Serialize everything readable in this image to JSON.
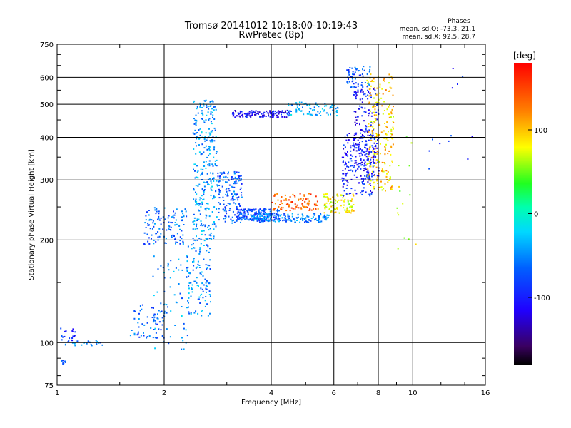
{
  "chart_data": {
    "type": "scatter",
    "title": "Tromsø 20141012 10:18:00-10:19:43",
    "subtitle": "RwPretec (8p)",
    "stats": {
      "heading": "Phases",
      "line1": "mean, sd,O: -73.3, 21.1",
      "line2": "mean, sd,X:  92.5, 28.7"
    },
    "xlabel": "Frequency [MHz]",
    "ylabel": "Stationary phase Virtual Height [km]",
    "xscale": "log",
    "yscale": "log",
    "xlim": [
      1,
      16
    ],
    "ylim": [
      75,
      750
    ],
    "xticks": [
      {
        "v": 1,
        "label": "1"
      },
      {
        "v": 2,
        "label": "2"
      },
      {
        "v": 4,
        "label": "4"
      },
      {
        "v": 6,
        "label": "6"
      },
      {
        "v": 8,
        "label": "8"
      },
      {
        "v": 10,
        "label": "10"
      },
      {
        "v": 16,
        "label": "16"
      }
    ],
    "yticks": [
      {
        "v": 75,
        "label": "75"
      },
      {
        "v": 100,
        "label": "100"
      },
      {
        "v": 200,
        "label": "200"
      },
      {
        "v": 300,
        "label": "300"
      },
      {
        "v": 400,
        "label": "400"
      },
      {
        "v": 500,
        "label": "500"
      },
      {
        "v": 600,
        "label": "600"
      },
      {
        "v": 750,
        "label": "750"
      }
    ],
    "grid": true,
    "colorbar": {
      "label": "[deg]",
      "range": [
        -180,
        180
      ],
      "ticks": [
        {
          "v": 100,
          "label": "100"
        },
        {
          "v": 0,
          "label": "0"
        },
        {
          "v": -100,
          "label": "-100"
        }
      ]
    },
    "clusters": [
      {
        "f": [
          1.0,
          1.12
        ],
        "h": [
          100,
          112
        ],
        "phase": -90,
        "n": 20
      },
      {
        "f": [
          1.05,
          1.35
        ],
        "h": [
          98,
          102
        ],
        "phase": -55,
        "n": 25
      },
      {
        "f": [
          1.02,
          1.06
        ],
        "h": [
          87,
          90
        ],
        "phase": -80,
        "n": 8
      },
      {
        "f": [
          1.6,
          2.0
        ],
        "h": [
          103,
          130
        ],
        "phase": -70,
        "n": 60
      },
      {
        "f": [
          1.85,
          2.35
        ],
        "h": [
          95,
          185
        ],
        "phase": -45,
        "n": 70
      },
      {
        "f": [
          1.75,
          2.3
        ],
        "h": [
          195,
          250
        ],
        "phase": -65,
        "n": 120
      },
      {
        "f": [
          2.3,
          2.7
        ],
        "h": [
          120,
          200
        ],
        "phase": -50,
        "n": 120
      },
      {
        "f": [
          2.4,
          2.8
        ],
        "h": [
          200,
          520
        ],
        "phase": -45,
        "n": 300
      },
      {
        "f": [
          2.8,
          3.3
        ],
        "h": [
          225,
          320
        ],
        "phase": -70,
        "n": 160
      },
      {
        "f": [
          3.2,
          4.2
        ],
        "h": [
          228,
          248
        ],
        "phase": -75,
        "n": 180
      },
      {
        "f": [
          3.5,
          5.8
        ],
        "h": [
          226,
          240
        ],
        "phase": -55,
        "n": 160
      },
      {
        "f": [
          4.0,
          5.4
        ],
        "h": [
          245,
          275
        ],
        "phase": 140,
        "n": 90
      },
      {
        "f": [
          3.1,
          4.5
        ],
        "h": [
          460,
          482
        ],
        "phase": -110,
        "n": 130
      },
      {
        "f": [
          4.4,
          6.2
        ],
        "h": [
          465,
          510
        ],
        "phase": -40,
        "n": 80
      },
      {
        "f": [
          5.6,
          6.8
        ],
        "h": [
          240,
          275
        ],
        "phase": 80,
        "n": 90
      },
      {
        "f": [
          6.3,
          7.8
        ],
        "h": [
          270,
          420
        ],
        "phase": -100,
        "n": 180
      },
      {
        "f": [
          6.8,
          8.0
        ],
        "h": [
          300,
          560
        ],
        "phase": -105,
        "n": 180
      },
      {
        "f": [
          7.4,
          8.8
        ],
        "h": [
          280,
          620
        ],
        "phase": 95,
        "n": 220
      },
      {
        "f": [
          6.5,
          7.6
        ],
        "h": [
          560,
          650
        ],
        "phase": -70,
        "n": 60
      },
      {
        "f": [
          8.8,
          10.2
        ],
        "h": [
          180,
          420
        ],
        "phase": 70,
        "n": 15
      },
      {
        "f": [
          11,
          16
        ],
        "h": [
          320,
          650
        ],
        "phase": -90,
        "n": 12
      }
    ]
  }
}
